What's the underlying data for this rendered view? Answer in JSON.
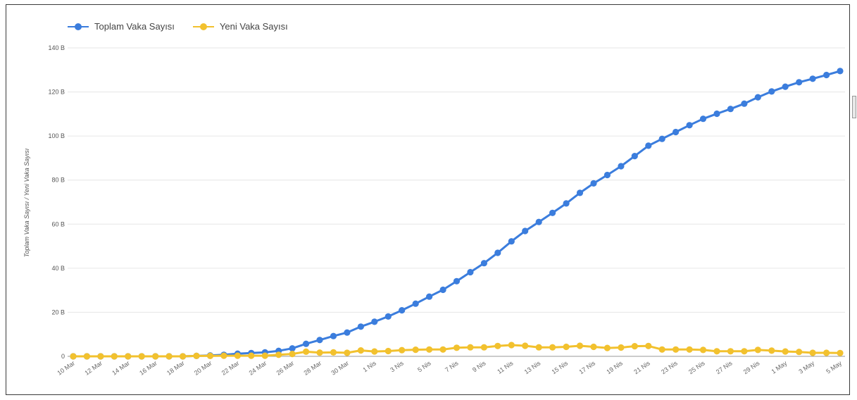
{
  "chart_data": {
    "type": "line",
    "title": "",
    "xlabel": "",
    "ylabel": "Toplam Vaka Sayısı / Yeni Vaka Sayısı",
    "ylim": [
      0,
      140000
    ],
    "yticks": [
      0,
      20000,
      40000,
      60000,
      80000,
      100000,
      120000,
      140000
    ],
    "ytick_labels": [
      "0",
      "20 B",
      "40 B",
      "60 B",
      "80 B",
      "100 B",
      "120 B",
      "140 B"
    ],
    "x_tick_labels": [
      "10 Mar",
      "12 Mar",
      "14 Mar",
      "16 Mar",
      "18 Mar",
      "20 Mar",
      "22 Mar",
      "24 Mar",
      "26 Mar",
      "28 Mar",
      "30 Mar",
      "1 Nis",
      "3 Nis",
      "5 Nis",
      "7 Nis",
      "9 Nis",
      "11 Nis",
      "13 Nis",
      "15 Nis",
      "17 Nis",
      "19 Nis",
      "21 Nis",
      "23 Nis",
      "25 Nis",
      "27 Nis",
      "29 Nis",
      "1 May",
      "3 May",
      "5 May"
    ],
    "grid": true,
    "legend": "top-left",
    "colors": {
      "total": "#3b7ddd",
      "new": "#f2c12e"
    },
    "series": [
      {
        "name": "Toplam Vaka Sayısı",
        "values": [
          0,
          0,
          0,
          0,
          0,
          0,
          0,
          0,
          0,
          200,
          400,
          700,
          1200,
          1500,
          1800,
          2500,
          3600,
          5700,
          7400,
          9200,
          10800,
          13500,
          15700,
          18100,
          20900,
          23900,
          27100,
          30200,
          34100,
          38200,
          42300,
          47000,
          52200,
          56900,
          61000,
          65100,
          69400,
          74200,
          78500,
          82300,
          86300,
          90900,
          95600,
          98700,
          101800,
          104900,
          107800,
          110100,
          112300,
          114700,
          117600,
          120200,
          122400,
          124400,
          126000,
          127700,
          129500
        ]
      },
      {
        "name": "Yeni Vaka Sayısı",
        "values": [
          0,
          0,
          0,
          0,
          0,
          0,
          0,
          0,
          0,
          200,
          200,
          300,
          300,
          300,
          300,
          700,
          1100,
          2100,
          1700,
          1800,
          1600,
          2700,
          2200,
          2400,
          2800,
          3000,
          3100,
          3100,
          3900,
          4100,
          4100,
          4700,
          5100,
          4800,
          4100,
          4100,
          4300,
          4800,
          4300,
          3800,
          4000,
          4600,
          4700,
          3100,
          3100,
          3100,
          2900,
          2300,
          2300,
          2300,
          2900,
          2600,
          2200,
          2000,
          1600,
          1600,
          1500
        ]
      }
    ]
  }
}
